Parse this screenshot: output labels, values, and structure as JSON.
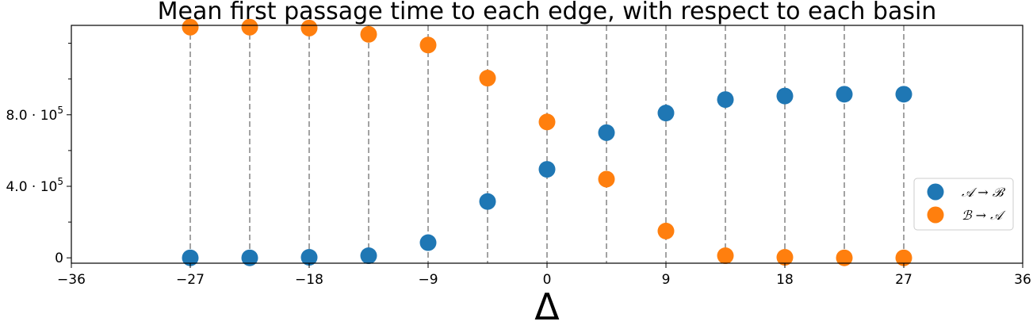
{
  "chart_data": {
    "type": "scatter",
    "title": "Mean first passage time to each edge, with respect to each basin",
    "xlabel": "Δ",
    "ylabel": "",
    "xlim": [
      -36,
      36
    ],
    "ylim": [
      -30000,
      1300000
    ],
    "x_ticks": [
      -36,
      -27,
      -18,
      -9,
      0,
      9,
      18,
      27,
      36
    ],
    "x_tick_labels": [
      "−36",
      "−27",
      "−18",
      "−9",
      "0",
      "9",
      "18",
      "27",
      "36"
    ],
    "y_ticks": [
      0,
      400000,
      800000
    ],
    "y_tick_labels": [
      {
        "base": "0",
        "exp": ""
      },
      {
        "base": "4.0 · 10",
        "exp": "5"
      },
      {
        "base": "8.0 · 10",
        "exp": "5"
      }
    ],
    "y_minor_ticks": [
      200000,
      600000,
      1000000,
      1200000
    ],
    "x": [
      -27,
      -22.5,
      -18,
      -13.5,
      -9,
      -4.5,
      0,
      4.5,
      9,
      13.5,
      18,
      22.5,
      27
    ],
    "series": [
      {
        "name": "𝒜 → ℬ",
        "color": "#1f77b4",
        "values": [
          0,
          0,
          3000,
          12000,
          85000,
          315000,
          495000,
          700000,
          810000,
          885000,
          905000,
          915000,
          915000
        ]
      },
      {
        "name": "ℬ → 𝒜",
        "color": "#ff7f0e",
        "values": [
          1290000,
          1290000,
          1285000,
          1250000,
          1190000,
          1005000,
          760000,
          440000,
          150000,
          12000,
          3000,
          0,
          0
        ]
      }
    ],
    "vlines": true,
    "vline_color": "#8c8c8c",
    "legend_position": "center-right",
    "grid": false
  }
}
